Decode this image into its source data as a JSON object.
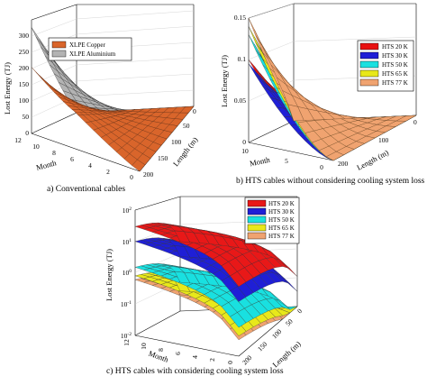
{
  "chart_data": [
    {
      "type": "surface3d",
      "caption": "a) Conventional cables",
      "zlabel": "Lost Energy (TJ)",
      "xlabel": "Month",
      "ylabel": "Length (m)",
      "zlim": [
        0,
        300
      ],
      "z_ticks": [
        "0",
        "50",
        "100",
        "150",
        "200",
        "250",
        "300"
      ],
      "month_ticks": [
        "12",
        "10",
        "8",
        "6",
        "4",
        "2",
        "0"
      ],
      "length_ticks": [
        "200",
        "150",
        "100",
        "50",
        "0"
      ],
      "legend_position": "top",
      "series": [
        {
          "name": "XLPE Copper",
          "color": "#d9652b",
          "z_at_month0_length200": 0,
          "z_at_month12_length200": 175,
          "z_at_month0_length0": 0,
          "z_at_month12_length0": 0
        },
        {
          "name": "XLPE Aluminium",
          "color": "#b3b3b3",
          "z_at_month0_length200": 0,
          "z_at_month12_length200": 280,
          "z_at_month0_length0": 0,
          "z_at_month12_length0": 0
        }
      ]
    },
    {
      "type": "surface3d",
      "caption": "b) HTS cables without considering cooling system loss",
      "zlabel": "Lost Energy (TJ)",
      "xlabel": "Month",
      "ylabel": "Length (m)",
      "zlim": [
        0,
        0.15
      ],
      "z_ticks": [
        "0",
        "0.05",
        "0.1",
        "0.15"
      ],
      "month_ticks": [
        "10",
        "5",
        "0"
      ],
      "length_ticks": [
        "200",
        "100",
        "0"
      ],
      "legend_position": "right",
      "series": [
        {
          "name": "HTS 20 K",
          "color": "#e81010",
          "z_max": 0.1
        },
        {
          "name": "HTS 30 K",
          "color": "#1f1fd6",
          "z_max": 0.095
        },
        {
          "name": "HTS 50 K",
          "color": "#19e0e0",
          "z_max": 0.13
        },
        {
          "name": "HTS 65 K",
          "color": "#e8e81a",
          "z_max": 0.14
        },
        {
          "name": "HTS 77 K",
          "color": "#f0a370",
          "z_max": 0.15
        }
      ]
    },
    {
      "type": "surface3d",
      "caption": "c) HTS cables with considering cooling system loss",
      "zlabel": "Lost Energy (TJ)",
      "xlabel": "Month",
      "ylabel": "Length (m)",
      "zscale": "log",
      "zlim": [
        0.01,
        100
      ],
      "z_ticks": [
        {
          "base": "10",
          "exp": "2"
        },
        {
          "base": "10",
          "exp": "1"
        },
        {
          "base": "10",
          "exp": "0"
        },
        {
          "base": "10",
          "exp": "-1"
        },
        {
          "base": "10",
          "exp": "-2"
        }
      ],
      "month_ticks": [
        "12",
        "10",
        "8",
        "6",
        "4",
        "2",
        "0"
      ],
      "length_ticks": [
        "200",
        "150",
        "100",
        "50",
        "0"
      ],
      "legend_position": "top-right",
      "series": [
        {
          "name": "HTS 20 K",
          "color": "#e81818",
          "z_max": 30
        },
        {
          "name": "HTS 30 K",
          "color": "#1f1fd6",
          "z_max": 10
        },
        {
          "name": "HTS 50 K",
          "color": "#19e0e0",
          "z_max": 1.5
        },
        {
          "name": "HTS 65 K",
          "color": "#e8e81a",
          "z_max": 0.8
        },
        {
          "name": "HTS 77 K",
          "color": "#f0a370",
          "z_max": 0.6
        }
      ]
    }
  ]
}
